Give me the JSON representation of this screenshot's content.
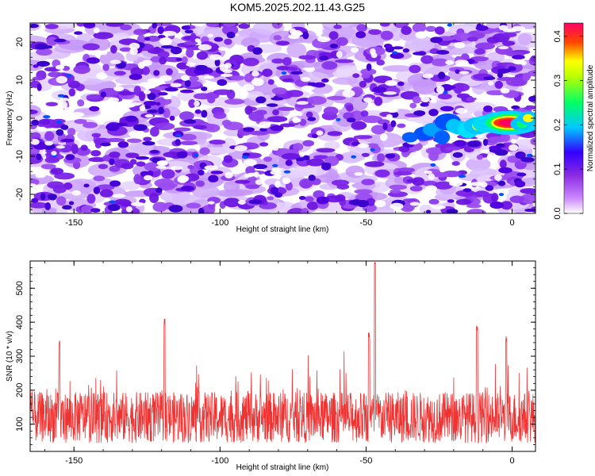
{
  "title": "KOM5.2025.202.11.43.G25",
  "chart_data": [
    {
      "type": "heatmap",
      "xlabel": "Height of straight line (km)",
      "ylabel": "Frequency (Hz)",
      "xlim": [
        -165,
        8
      ],
      "ylim": [
        -25,
        25
      ],
      "xticks": [
        -150,
        -100,
        -50,
        0
      ],
      "yticks": [
        -20,
        -10,
        0,
        10,
        20
      ],
      "colorbar": {
        "label": "Normalized spectral amplitude",
        "range": [
          0,
          0.43
        ],
        "ticks": [
          0.0,
          0.1,
          0.2,
          0.3,
          0.4
        ],
        "tick_labels": [
          "0.0",
          "0.1",
          "0.2",
          "0.3",
          "0.4"
        ],
        "colormap": [
          "#ffffff",
          "#9b30ff",
          "#3300ff",
          "#00c8ff",
          "#00ff66",
          "#ffff00",
          "#ff0000",
          "#ff0066"
        ]
      },
      "peak": {
        "x": -1,
        "y": -1,
        "value": 0.43
      },
      "grid": false
    },
    {
      "type": "line",
      "xlabel": "Height of straight line (km)",
      "ylabel": "SNR (10 * v/v)",
      "xlim": [
        -165,
        8
      ],
      "ylim": [
        20,
        580
      ],
      "xticks": [
        -150,
        -100,
        -50,
        0
      ],
      "yticks": [
        100,
        200,
        300,
        400,
        500
      ],
      "color": "#ee3333",
      "baseline_mean": 120,
      "peaks": [
        {
          "x": -47,
          "y": 580
        },
        {
          "x": -119,
          "y": 410
        },
        {
          "x": -12,
          "y": 390
        },
        {
          "x": -49,
          "y": 370
        },
        {
          "x": -155,
          "y": 350
        },
        {
          "x": -2,
          "y": 360
        }
      ],
      "grid": false
    }
  ]
}
